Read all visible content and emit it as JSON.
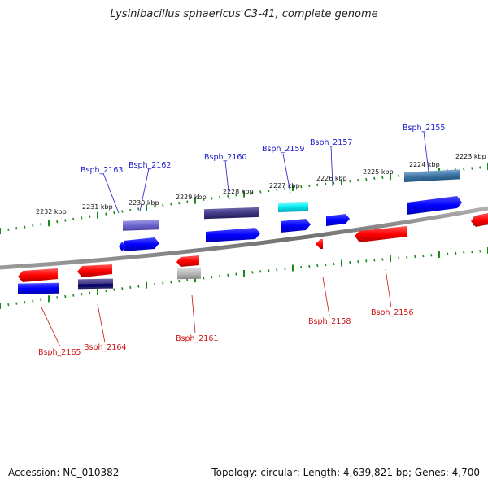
{
  "title": "Lysinibacillus sphaericus C3-41, complete genome",
  "footer": {
    "accession": "Accession: NC_010382",
    "summary": "Topology: circular; Length: 4,639,821 bp; Genes: 4,700"
  },
  "kbp_labels": [
    "2232 kbp",
    "2231 kbp",
    "2230 kbp",
    "2229 kbp",
    "2228 kbp",
    "2227 kbp",
    "2226 kbp",
    "2225 kbp",
    "2224 kbp",
    "2223 kbp"
  ],
  "genes_top": [
    "Bsph_2163",
    "Bsph_2162",
    "Bsph_2160",
    "Bsph_2159",
    "Bsph_2157",
    "Bsph_2155"
  ],
  "genes_bottom": [
    "Bsph_2165",
    "Bsph_2164",
    "Bsph_2161",
    "Bsph_2158",
    "Bsph_2156"
  ],
  "colors": {
    "forward": "#0000ff",
    "reverse": "#ff0000",
    "ticks": "#1a8a1a",
    "backbone": "#808080",
    "top_label": "#1a1acc",
    "bottom_label": "#cc1111"
  }
}
